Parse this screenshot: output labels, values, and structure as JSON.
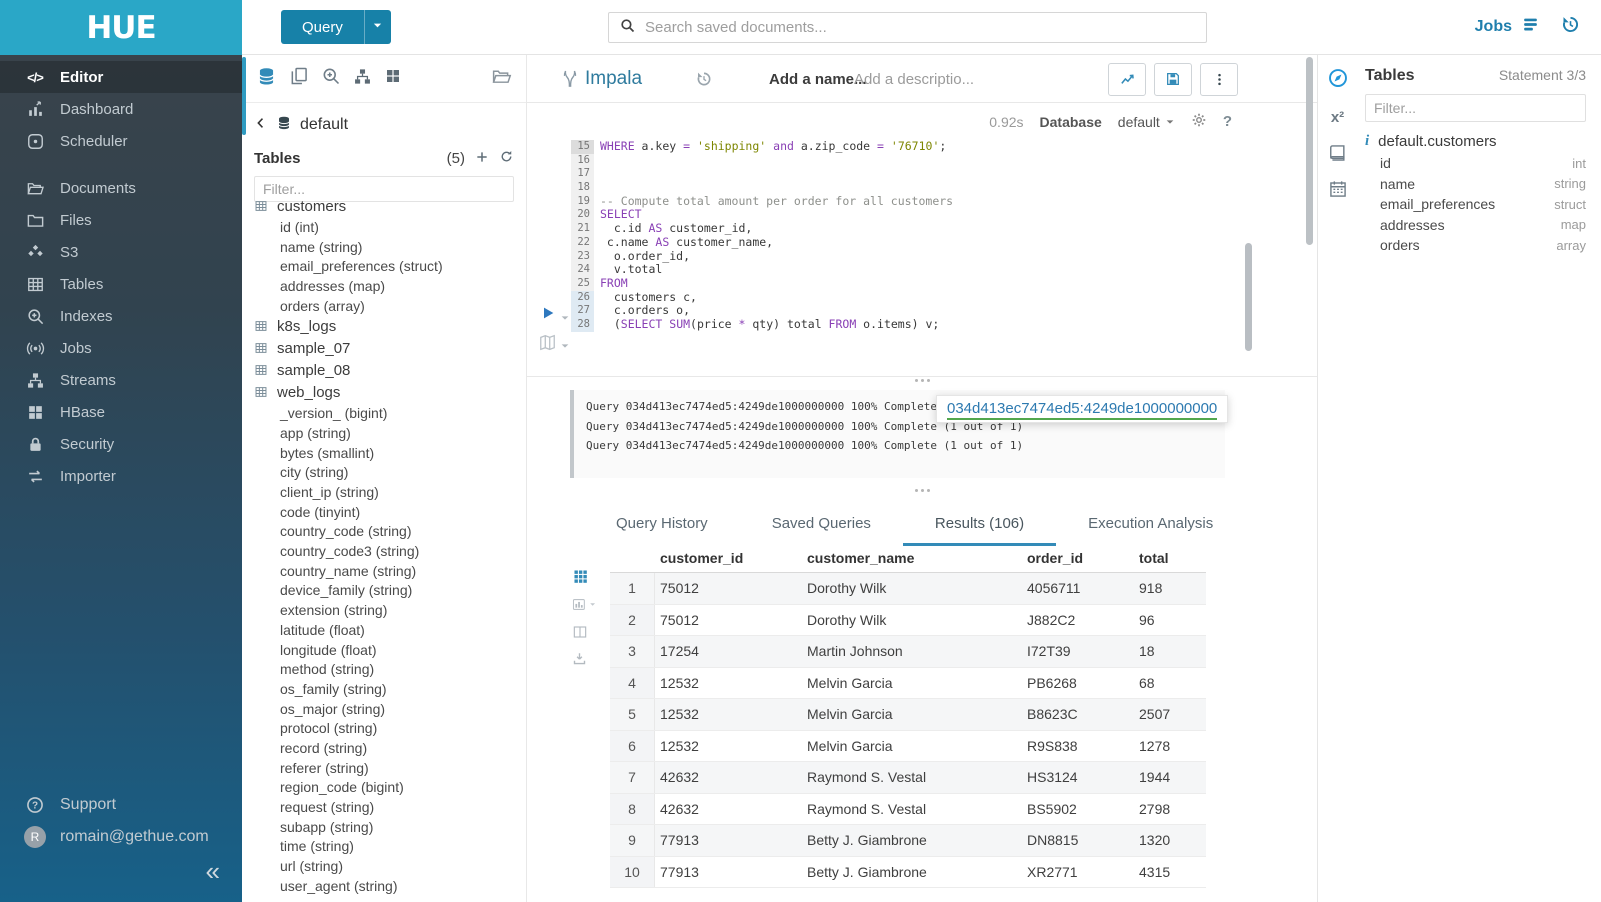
{
  "brand": {
    "logo": "HUE"
  },
  "topbar": {
    "query_button": "Query",
    "search_placeholder": "Search saved documents...",
    "jobs_label": "Jobs"
  },
  "sidebar": {
    "items": [
      {
        "label": "Editor",
        "icon": "code",
        "active": true
      },
      {
        "label": "Dashboard",
        "icon": "dashboard"
      },
      {
        "label": "Scheduler",
        "icon": "scheduler"
      },
      {
        "label": "Documents",
        "icon": "documents",
        "group_start": true
      },
      {
        "label": "Files",
        "icon": "folder"
      },
      {
        "label": "S3",
        "icon": "cubes"
      },
      {
        "label": "Tables",
        "icon": "table"
      },
      {
        "label": "Indexes",
        "icon": "search-plus"
      },
      {
        "label": "Jobs",
        "icon": "broadcast"
      },
      {
        "label": "Streams",
        "icon": "sitemap"
      },
      {
        "label": "HBase",
        "icon": "blocks"
      },
      {
        "label": "Security",
        "icon": "lock"
      },
      {
        "label": "Importer",
        "icon": "exchange"
      }
    ],
    "support_label": "Support",
    "user_email": "romain@gethue.com",
    "user_initial": "R"
  },
  "assist": {
    "database": "default",
    "tables_label": "Tables",
    "table_count": "(5)",
    "filter_placeholder": "Filter...",
    "tables": [
      {
        "name": "customers",
        "columns": [
          "id (int)",
          "name (string)",
          "email_preferences (struct)",
          "addresses (map)",
          "orders (array)"
        ]
      },
      {
        "name": "k8s_logs",
        "columns": []
      },
      {
        "name": "sample_07",
        "columns": []
      },
      {
        "name": "sample_08",
        "columns": []
      },
      {
        "name": "web_logs",
        "columns": [
          "_version_ (bigint)",
          "app (string)",
          "bytes (smallint)",
          "city (string)",
          "client_ip (string)",
          "code (tinyint)",
          "country_code (string)",
          "country_code3 (string)",
          "country_name (string)",
          "device_family (string)",
          "extension (string)",
          "latitude (float)",
          "longitude (float)",
          "method (string)",
          "os_family (string)",
          "os_major (string)",
          "protocol (string)",
          "record (string)",
          "referer (string)",
          "region_code (bigint)",
          "request (string)",
          "subapp (string)",
          "time (string)",
          "url (string)",
          "user_agent (string)"
        ]
      }
    ]
  },
  "editor": {
    "engine": "Impala",
    "name_placeholder": "Add a name...",
    "description_placeholder": "Add a descriptio...",
    "exec_time": "0.92s",
    "database_label": "Database",
    "database_value": "default",
    "code_lines": [
      {
        "no": 15,
        "segments": [
          [
            "kw",
            "WHERE"
          ],
          [
            "pln",
            " a.key "
          ],
          [
            "kw",
            "="
          ],
          [
            "pln",
            " "
          ],
          [
            "str",
            "'shipping'"
          ],
          [
            "pln",
            " "
          ],
          [
            "kw",
            "and"
          ],
          [
            "pln",
            " a.zip_code "
          ],
          [
            "kw",
            "="
          ],
          [
            "pln",
            " "
          ],
          [
            "str",
            "'76710'"
          ],
          [
            "pln",
            ";"
          ]
        ],
        "cursor": true
      },
      {
        "no": 16,
        "segments": []
      },
      {
        "no": 17,
        "segments": []
      },
      {
        "no": 18,
        "segments": []
      },
      {
        "no": 19,
        "segments": [
          [
            "cmt",
            "-- Compute total amount per order for all customers"
          ]
        ]
      },
      {
        "no": 20,
        "segments": [
          [
            "kw",
            "SELECT"
          ]
        ]
      },
      {
        "no": 21,
        "segments": [
          [
            "pln",
            "  c.id "
          ],
          [
            "kw",
            "AS"
          ],
          [
            "pln",
            " customer_id,"
          ]
        ]
      },
      {
        "no": 22,
        "segments": [
          [
            "pln",
            " c.name "
          ],
          [
            "kw",
            "AS"
          ],
          [
            "pln",
            " customer_name,"
          ]
        ]
      },
      {
        "no": 23,
        "segments": [
          [
            "pln",
            "  o.order_id,"
          ]
        ]
      },
      {
        "no": 24,
        "segments": [
          [
            "pln",
            "  v.total"
          ]
        ]
      },
      {
        "no": 25,
        "segments": [
          [
            "kw",
            "FROM"
          ]
        ]
      },
      {
        "no": 26,
        "segments": [
          [
            "pln",
            "  customers c,"
          ]
        ],
        "sel": true
      },
      {
        "no": 27,
        "segments": [
          [
            "pln",
            "  c.orders o,"
          ]
        ],
        "sel": true
      },
      {
        "no": 28,
        "segments": [
          [
            "pln",
            "  ("
          ],
          [
            "kw",
            "SELECT"
          ],
          [
            "pln",
            " "
          ],
          [
            "kw",
            "SUM"
          ],
          [
            "pln",
            "(price "
          ],
          [
            "kw",
            "*"
          ],
          [
            "pln",
            " qty) total "
          ],
          [
            "kw",
            "FROM"
          ],
          [
            "pln",
            " o.items) v;"
          ]
        ],
        "sel": true
      }
    ]
  },
  "logs": {
    "entries": [
      "Query 034d413ec7474ed5:4249de1000000000 100% Complete (1 out of 1)",
      "Query 034d413ec7474ed5:4249de1000000000 100% Complete (1 out of 1)",
      "Query 034d413ec7474ed5:4249de1000000000 100% Complete (1 out of 1)"
    ],
    "tooltip_id": "034d413ec7474ed5:4249de1000000000"
  },
  "tabs": [
    {
      "label": "Query History",
      "active": false
    },
    {
      "label": "Saved Queries",
      "active": false
    },
    {
      "label": "Results (106)",
      "active": true
    },
    {
      "label": "Execution Analysis",
      "active": false
    }
  ],
  "results": {
    "columns": [
      "customer_id",
      "customer_name",
      "order_id",
      "total"
    ],
    "rows": [
      [
        "1",
        "75012",
        "Dorothy Wilk",
        "4056711",
        "918"
      ],
      [
        "2",
        "75012",
        "Dorothy Wilk",
        "J882C2",
        "96"
      ],
      [
        "3",
        "17254",
        "Martin Johnson",
        "I72T39",
        "18"
      ],
      [
        "4",
        "12532",
        "Melvin Garcia",
        "PB6268",
        "68"
      ],
      [
        "5",
        "12532",
        "Melvin Garcia",
        "B8623C",
        "2507"
      ],
      [
        "6",
        "12532",
        "Melvin Garcia",
        "R9S838",
        "1278"
      ],
      [
        "7",
        "42632",
        "Raymond S. Vestal",
        "HS3124",
        "1944"
      ],
      [
        "8",
        "42632",
        "Raymond S. Vestal",
        "BS5902",
        "2798"
      ],
      [
        "9",
        "77913",
        "Betty J. Giambrone",
        "DN8815",
        "1320"
      ],
      [
        "10",
        "77913",
        "Betty J. Giambrone",
        "XR2771",
        "4315"
      ]
    ]
  },
  "right_panel": {
    "title": "Tables",
    "statement": "Statement 3/3",
    "filter_placeholder": "Filter...",
    "table_name": "default.customers",
    "columns": [
      {
        "name": "id",
        "type": "int"
      },
      {
        "name": "name",
        "type": "string"
      },
      {
        "name": "email_preferences",
        "type": "struct"
      },
      {
        "name": "addresses",
        "type": "map"
      },
      {
        "name": "orders",
        "type": "array"
      }
    ]
  },
  "colors": {
    "brand_header": "#2aa7c7",
    "accent_blue": "#338bb8",
    "keyword": "#8940b5",
    "string": "#7d8600",
    "comment": "#8e908c",
    "tooltip_underline": "#52a74d"
  }
}
